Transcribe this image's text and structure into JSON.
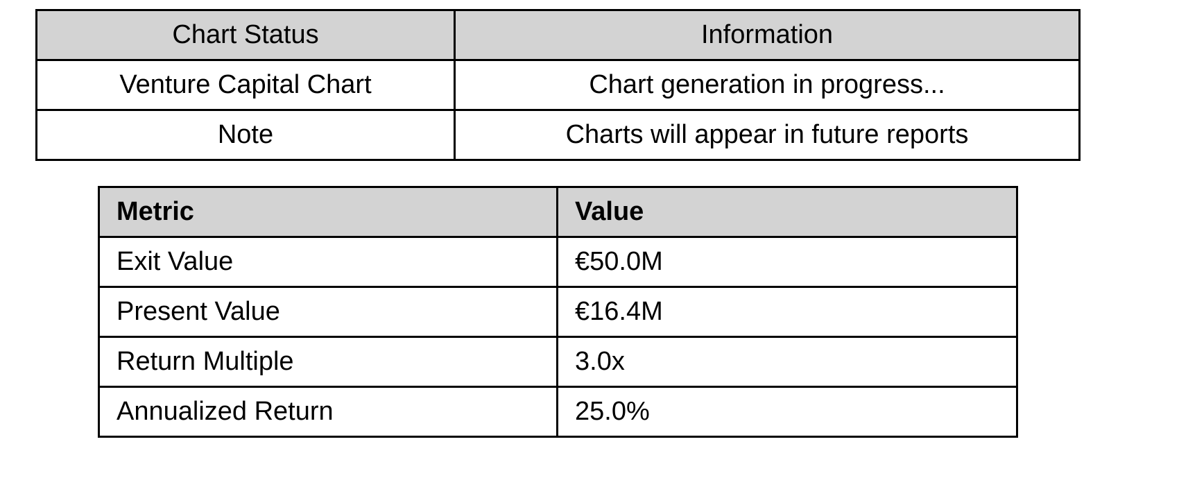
{
  "status_table": {
    "headers": [
      "Chart Status",
      "Information"
    ],
    "rows": [
      [
        "Venture Capital Chart",
        "Chart generation in progress..."
      ],
      [
        "Note",
        "Charts will appear in future reports"
      ]
    ]
  },
  "metrics_table": {
    "headers": [
      "Metric",
      "Value"
    ],
    "rows": [
      [
        "Exit Value",
        "€50.0M"
      ],
      [
        "Present Value",
        "€16.4M"
      ],
      [
        "Return Multiple",
        "3.0x"
      ],
      [
        "Annualized Return",
        "25.0%"
      ]
    ]
  },
  "colors": {
    "header_background": "#d3d3d3",
    "border": "#000000",
    "text": "#000000"
  }
}
